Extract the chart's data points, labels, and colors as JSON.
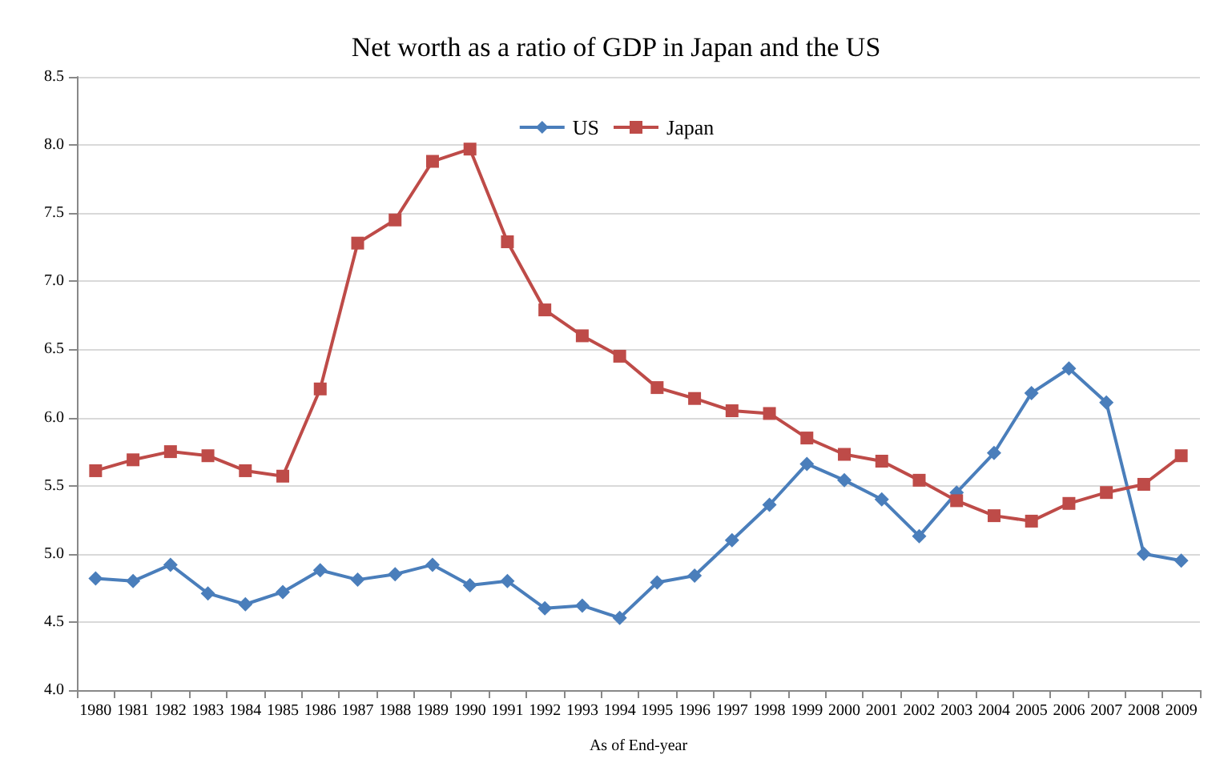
{
  "chart_data": {
    "type": "line",
    "title": "Net worth as a ratio of GDP in Japan and the US",
    "xlabel": "As of End-year",
    "categories": [
      "1980",
      "1981",
      "1982",
      "1983",
      "1984",
      "1985",
      "1986",
      "1987",
      "1988",
      "1989",
      "1990",
      "1991",
      "1992",
      "1993",
      "1994",
      "1995",
      "1996",
      "1997",
      "1998",
      "1999",
      "2000",
      "2001",
      "2002",
      "2003",
      "2004",
      "2005",
      "2006",
      "2007",
      "2008",
      "2009"
    ],
    "series": [
      {
        "name": "US",
        "color": "#4a7ebb",
        "marker": "diamond",
        "values": [
          4.82,
          4.8,
          4.92,
          4.71,
          4.63,
          4.72,
          4.88,
          4.81,
          4.85,
          4.92,
          4.77,
          4.8,
          4.6,
          4.62,
          4.53,
          4.79,
          4.84,
          5.1,
          5.36,
          5.66,
          5.54,
          5.4,
          5.13,
          5.45,
          5.74,
          6.18,
          6.36,
          6.11,
          5.0,
          4.95
        ]
      },
      {
        "name": "Japan",
        "color": "#be4b48",
        "marker": "square",
        "values": [
          5.61,
          5.69,
          5.75,
          5.72,
          5.61,
          5.57,
          6.21,
          7.28,
          7.45,
          7.88,
          7.97,
          7.29,
          6.79,
          6.6,
          6.45,
          6.22,
          6.14,
          6.05,
          6.03,
          5.85,
          5.73,
          5.68,
          5.54,
          5.39,
          5.28,
          5.24,
          5.37,
          5.45,
          5.51,
          5.72
        ]
      }
    ],
    "ylim": [
      4.0,
      8.5
    ],
    "yticks": [
      {
        "value": 4,
        "label": "4.0"
      },
      4.5,
      {
        "value": 5,
        "label": "5.0"
      },
      5.5,
      {
        "value": 6,
        "label": "6.0"
      },
      6.5,
      {
        "value": 7,
        "label": "7.0"
      },
      7.5,
      {
        "value": 8,
        "label": "8.0"
      },
      8.5
    ],
    "grid": "y",
    "legend": "top",
    "line_style": "solid"
  }
}
